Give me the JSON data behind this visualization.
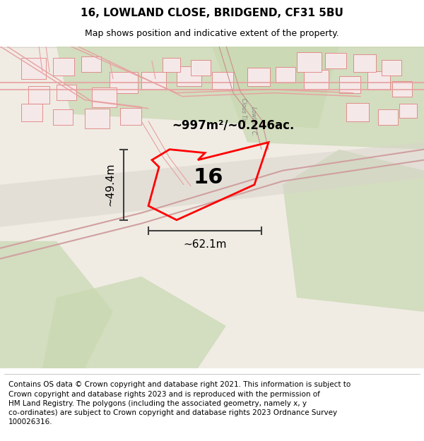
{
  "title": "16, LOWLAND CLOSE, BRIDGEND, CF31 5BU",
  "subtitle": "Map shows position and indicative extent of the property.",
  "area_label": "~997m²/~0.246ac.",
  "plot_number": "16",
  "width_label": "~62.1m",
  "height_label": "~49.4m",
  "footer": "Contains OS data © Crown copyright and database right 2021. This information is subject to Crown copyright and database rights 2023 and is reproduced with the permission of HM Land Registry. The polygons (including the associated geometry, namely x, y co-ordinates) are subject to Crown copyright and database rights 2023 Ordnance Survey 100026316.",
  "background_color": "#f5f0eb",
  "map_background": "#f9f9f7",
  "red_plot_color": "#ff0000",
  "dark_red_road_color": "#e8a0a0",
  "green_area_color": "#c8d8b8",
  "title_fontsize": 11,
  "subtitle_fontsize": 9,
  "footer_fontsize": 7.5,
  "label_fontsize": 12
}
